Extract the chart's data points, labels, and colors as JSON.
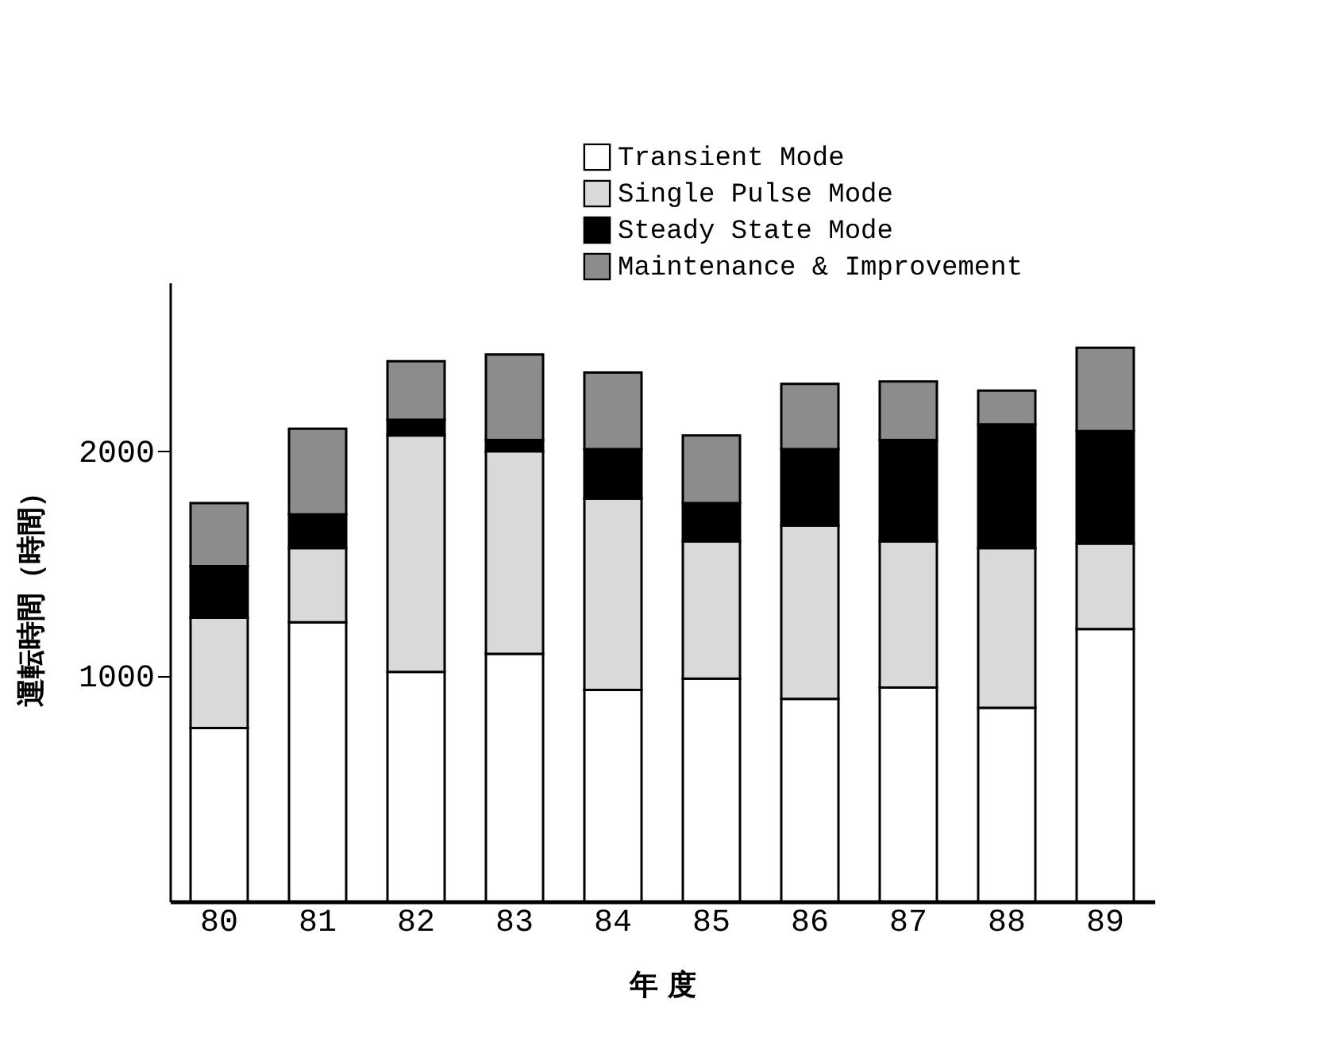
{
  "chart_data": {
    "type": "bar",
    "stacked": true,
    "xlabel": "年 度",
    "ylabel": "運転時間（時間）",
    "categories": [
      "80",
      "81",
      "82",
      "83",
      "84",
      "85",
      "86",
      "87",
      "88",
      "89"
    ],
    "series": [
      {
        "name": "Transient Mode",
        "color": "#ffffff",
        "values": [
          770,
          1240,
          1020,
          1100,
          940,
          990,
          900,
          950,
          860,
          1210
        ]
      },
      {
        "name": "Single Pulse Mode",
        "color": "#d9d9d9",
        "values": [
          490,
          330,
          1050,
          900,
          850,
          610,
          770,
          650,
          710,
          380
        ]
      },
      {
        "name": "Steady State Mode",
        "color": "#000000",
        "values": [
          230,
          150,
          70,
          50,
          220,
          170,
          340,
          450,
          550,
          500
        ]
      },
      {
        "name": "Maintenance & Improvement",
        "color": "#8c8c8c",
        "values": [
          280,
          380,
          260,
          380,
          340,
          300,
          290,
          260,
          150,
          370
        ]
      }
    ],
    "ylim": [
      0,
      2750
    ],
    "yticks": [
      1000,
      2000
    ],
    "grid": false,
    "legend": "top right"
  }
}
